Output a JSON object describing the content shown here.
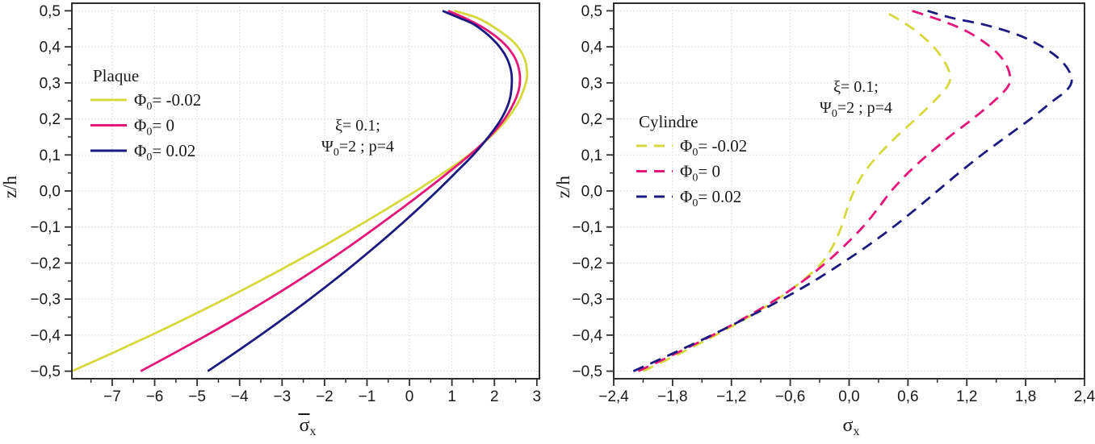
{
  "figure": {
    "background": "#ffffff"
  },
  "chart_data": [
    {
      "type": "line",
      "panel": "left",
      "legend_title": "Plaque",
      "ylabel": "z/h",
      "xlabel_sym": "σ",
      "xlabel_sub": "x",
      "xlabel_overbar": true,
      "xlim": [
        -7.95,
        3.06
      ],
      "ylim": [
        -0.521,
        0.521
      ],
      "x_ticks": [
        -7,
        -6,
        -5,
        -4,
        -3,
        -2,
        -1,
        0,
        1,
        2,
        3
      ],
      "x_tick_labels": [
        "−7",
        "−6",
        "−5",
        "−4",
        "−3",
        "−2",
        "−1",
        "0",
        "1",
        "2",
        "3"
      ],
      "x_minor_ticks": [
        -7.5,
        -6.5,
        -5.5,
        -4.5,
        -3.5,
        -2.5,
        -1.5,
        -0.5,
        0.5,
        1.5,
        2.5
      ],
      "y_ticks": [
        0.5,
        0.4,
        0.3,
        0.2,
        0.1,
        0.0,
        -0.1,
        -0.2,
        -0.3,
        -0.4,
        -0.5
      ],
      "y_tick_labels": [
        "0,5",
        "0,4",
        "0,3",
        "0,2",
        "0,1",
        "0,0",
        "−0,1",
        "−0,2",
        "−0,3",
        "−0,4",
        "−0,5"
      ],
      "y_minor_step": 0.05,
      "grid": true,
      "annotation": {
        "line1": "ξ= 0.1;",
        "line2_sym": "Ψ",
        "line2_sub": "0",
        "line2_rest": "=2 ; p=4"
      },
      "series": [
        {
          "name_sym": "Φ",
          "name_sub": "0",
          "name_rest": "= -0.02",
          "color": "#d6d93c",
          "style": "solid",
          "points": [
            [
              -7.95,
              -0.5
            ],
            [
              -7.0,
              -0.45
            ],
            [
              -6.08,
              -0.4
            ],
            [
              -5.2,
              -0.35
            ],
            [
              -4.35,
              -0.3
            ],
            [
              -3.53,
              -0.25
            ],
            [
              -2.74,
              -0.2
            ],
            [
              -1.98,
              -0.15
            ],
            [
              -1.25,
              -0.1
            ],
            [
              -0.54,
              -0.05
            ],
            [
              0.15,
              0
            ],
            [
              0.8,
              0.05
            ],
            [
              1.4,
              0.1
            ],
            [
              1.9,
              0.15
            ],
            [
              2.3,
              0.2
            ],
            [
              2.58,
              0.25
            ],
            [
              2.74,
              0.3
            ],
            [
              2.77,
              0.33
            ],
            [
              2.7,
              0.37
            ],
            [
              2.48,
              0.41
            ],
            [
              2.05,
              0.45
            ],
            [
              1.6,
              0.48
            ],
            [
              1.06,
              0.5
            ]
          ]
        },
        {
          "name_sym": "Φ",
          "name_sub": "0",
          "name_rest": "= 0",
          "color": "#e61578",
          "style": "solid",
          "points": [
            [
              -6.33,
              -0.5
            ],
            [
              -5.54,
              -0.45
            ],
            [
              -4.77,
              -0.4
            ],
            [
              -4.03,
              -0.35
            ],
            [
              -3.32,
              -0.3
            ],
            [
              -2.64,
              -0.25
            ],
            [
              -1.99,
              -0.2
            ],
            [
              -1.37,
              -0.15
            ],
            [
              -0.78,
              -0.1
            ],
            [
              -0.2,
              -0.05
            ],
            [
              0.36,
              0
            ],
            [
              0.9,
              0.05
            ],
            [
              1.42,
              0.1
            ],
            [
              1.88,
              0.15
            ],
            [
              2.24,
              0.2
            ],
            [
              2.48,
              0.25
            ],
            [
              2.59,
              0.29
            ],
            [
              2.59,
              0.33
            ],
            [
              2.48,
              0.37
            ],
            [
              2.22,
              0.41
            ],
            [
              1.78,
              0.45
            ],
            [
              1.3,
              0.48
            ],
            [
              0.91,
              0.5
            ]
          ]
        },
        {
          "name_sym": "Φ",
          "name_sub": "0",
          "name_rest": "= 0.02",
          "color": "#1c1a80",
          "style": "solid",
          "points": [
            [
              -4.75,
              -0.5
            ],
            [
              -4.12,
              -0.45
            ],
            [
              -3.51,
              -0.4
            ],
            [
              -2.92,
              -0.35
            ],
            [
              -2.35,
              -0.3
            ],
            [
              -1.8,
              -0.25
            ],
            [
              -1.27,
              -0.2
            ],
            [
              -0.76,
              -0.15
            ],
            [
              -0.27,
              -0.1
            ],
            [
              0.2,
              -0.05
            ],
            [
              0.65,
              0
            ],
            [
              1.08,
              0.05
            ],
            [
              1.5,
              0.1
            ],
            [
              1.86,
              0.15
            ],
            [
              2.16,
              0.2
            ],
            [
              2.35,
              0.25
            ],
            [
              2.41,
              0.3
            ],
            [
              2.38,
              0.34
            ],
            [
              2.24,
              0.38
            ],
            [
              1.97,
              0.42
            ],
            [
              1.55,
              0.46
            ],
            [
              1.18,
              0.48
            ],
            [
              0.78,
              0.5
            ]
          ]
        }
      ]
    },
    {
      "type": "line",
      "panel": "right",
      "legend_title": "Cylindre",
      "ylabel": "z/h",
      "xlabel_sym": "σ",
      "xlabel_sub": "x",
      "xlabel_overbar": false,
      "xlim": [
        -2.4,
        2.4
      ],
      "ylim": [
        -0.521,
        0.521
      ],
      "x_ticks": [
        -2.4,
        -1.8,
        -1.2,
        -0.6,
        0.0,
        0.6,
        1.2,
        1.8,
        2.4
      ],
      "x_tick_labels": [
        "−2,4",
        "−1,8",
        "−1,2",
        "−0,6",
        "0,0",
        "0,6",
        "1,2",
        "1,8",
        "2,4"
      ],
      "x_minor_ticks": [
        -2.1,
        -1.5,
        -0.9,
        -0.3,
        0.3,
        0.9,
        1.5,
        2.1
      ],
      "y_ticks": [
        0.5,
        0.4,
        0.3,
        0.2,
        0.1,
        0.0,
        -0.1,
        -0.2,
        -0.3,
        -0.4,
        -0.5
      ],
      "y_tick_labels": [
        "0,5",
        "0,4",
        "0,3",
        "0,2",
        "0,1",
        "0,0",
        "−0,1",
        "−0,2",
        "−0,3",
        "−0,4",
        "−0,5"
      ],
      "y_minor_step": 0.05,
      "grid": true,
      "annotation": {
        "line1": "ξ= 0.1;",
        "line2_sym": "Ψ",
        "line2_sub": "0",
        "line2_rest": "=2 ; p=4"
      },
      "series": [
        {
          "name_sym": "Φ",
          "name_sub": "0",
          "name_rest": "= -0.02",
          "color": "#d6d93c",
          "style": "dashed",
          "points": [
            [
              -2.1,
              -0.5
            ],
            [
              -1.72,
              -0.45
            ],
            [
              -1.36,
              -0.4
            ],
            [
              -1.03,
              -0.35
            ],
            [
              -0.73,
              -0.3
            ],
            [
              -0.48,
              -0.25
            ],
            [
              -0.28,
              -0.2
            ],
            [
              -0.16,
              -0.15
            ],
            [
              -0.08,
              -0.1
            ],
            [
              -0.02,
              -0.05
            ],
            [
              0.05,
              0
            ],
            [
              0.15,
              0.05
            ],
            [
              0.3,
              0.1
            ],
            [
              0.48,
              0.15
            ],
            [
              0.68,
              0.2
            ],
            [
              0.87,
              0.25
            ],
            [
              1.0,
              0.29
            ],
            [
              1.03,
              0.32
            ],
            [
              0.97,
              0.36
            ],
            [
              0.86,
              0.4
            ],
            [
              0.7,
              0.44
            ],
            [
              0.54,
              0.47
            ],
            [
              0.35,
              0.5
            ]
          ]
        },
        {
          "name_sym": "Φ",
          "name_sub": "0",
          "name_rest": "= 0",
          "color": "#e61578",
          "style": "dashed",
          "points": [
            [
              -2.15,
              -0.5
            ],
            [
              -1.76,
              -0.45
            ],
            [
              -1.39,
              -0.4
            ],
            [
              -1.05,
              -0.35
            ],
            [
              -0.74,
              -0.3
            ],
            [
              -0.47,
              -0.25
            ],
            [
              -0.24,
              -0.2
            ],
            [
              -0.04,
              -0.15
            ],
            [
              0.14,
              -0.1
            ],
            [
              0.29,
              -0.05
            ],
            [
              0.43,
              0
            ],
            [
              0.6,
              0.05
            ],
            [
              0.8,
              0.1
            ],
            [
              1.02,
              0.15
            ],
            [
              1.26,
              0.2
            ],
            [
              1.48,
              0.25
            ],
            [
              1.62,
              0.29
            ],
            [
              1.64,
              0.32
            ],
            [
              1.58,
              0.36
            ],
            [
              1.44,
              0.4
            ],
            [
              1.22,
              0.44
            ],
            [
              0.97,
              0.47
            ],
            [
              0.64,
              0.5
            ]
          ]
        },
        {
          "name_sym": "Φ",
          "name_sub": "0",
          "name_rest": "= 0.02",
          "color": "#1c1a80",
          "style": "dashed",
          "points": [
            [
              -2.2,
              -0.5
            ],
            [
              -1.79,
              -0.45
            ],
            [
              -1.4,
              -0.4
            ],
            [
              -1.03,
              -0.35
            ],
            [
              -0.68,
              -0.3
            ],
            [
              -0.36,
              -0.25
            ],
            [
              -0.07,
              -0.2
            ],
            [
              0.2,
              -0.15
            ],
            [
              0.45,
              -0.1
            ],
            [
              0.68,
              -0.05
            ],
            [
              0.9,
              0
            ],
            [
              1.12,
              0.05
            ],
            [
              1.35,
              0.1
            ],
            [
              1.6,
              0.15
            ],
            [
              1.85,
              0.2
            ],
            [
              2.08,
              0.25
            ],
            [
              2.22,
              0.28
            ],
            [
              2.27,
              0.31
            ],
            [
              2.2,
              0.35
            ],
            [
              2.03,
              0.39
            ],
            [
              1.75,
              0.43
            ],
            [
              1.4,
              0.46
            ],
            [
              1.05,
              0.48
            ],
            [
              0.8,
              0.5
            ]
          ]
        }
      ]
    }
  ],
  "style": {
    "frame_color": "#2e2e2e",
    "grid_color": "#d9d9d9",
    "text_color": "#1a1a1a"
  }
}
